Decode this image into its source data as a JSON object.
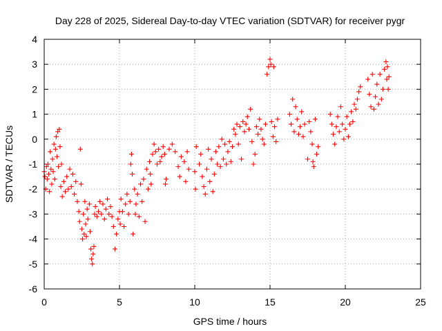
{
  "chart_data": {
    "type": "scatter",
    "title": "Day 228 of 2025, Sidereal Day-to-day VTEC variation (SDTVAR) for receiver pygr",
    "xlabel": "GPS time / hours",
    "ylabel": "SDTVAR / TECUs",
    "xlim": [
      0,
      25
    ],
    "ylim": [
      -6,
      4
    ],
    "x_ticks": [
      "0",
      "5",
      "10",
      "15",
      "20",
      "25"
    ],
    "y_ticks": [
      "4",
      "3",
      "2",
      "1",
      "0",
      "-1",
      "-2",
      "-3",
      "-4",
      "-5",
      "-6"
    ],
    "grid": true,
    "marker": "+",
    "color": "#ff0000",
    "series": [
      {
        "name": "SDTVAR",
        "points": [
          [
            0.0,
            -1.3
          ],
          [
            0.05,
            -1.5
          ],
          [
            0.1,
            -2.0
          ],
          [
            0.15,
            -1.1
          ],
          [
            0.2,
            -1.6
          ],
          [
            0.25,
            -1.0
          ],
          [
            0.3,
            -1.4
          ],
          [
            0.35,
            -2.1
          ],
          [
            0.4,
            -0.5
          ],
          [
            0.45,
            -1.2
          ],
          [
            0.5,
            -1.8
          ],
          [
            0.55,
            -0.8
          ],
          [
            0.6,
            -1.3
          ],
          [
            0.65,
            -0.2
          ],
          [
            0.7,
            -1.6
          ],
          [
            0.75,
            -0.4
          ],
          [
            0.8,
            0.1
          ],
          [
            0.85,
            -0.7
          ],
          [
            0.9,
            0.3
          ],
          [
            0.95,
            -1.1
          ],
          [
            1.0,
            0.4
          ],
          [
            1.05,
            -0.3
          ],
          [
            1.1,
            -1.9
          ],
          [
            1.15,
            -1.0
          ],
          [
            1.2,
            -2.3
          ],
          [
            1.3,
            -1.7
          ],
          [
            1.4,
            -2.1
          ],
          [
            1.5,
            -1.5
          ],
          [
            1.6,
            -2.0
          ],
          [
            1.7,
            -1.2
          ],
          [
            1.8,
            -1.9
          ],
          [
            1.9,
            -1.4
          ],
          [
            2.0,
            -2.2
          ],
          [
            2.1,
            -1.7
          ],
          [
            2.2,
            -2.5
          ],
          [
            2.3,
            -2.9
          ],
          [
            2.35,
            -3.3
          ],
          [
            2.4,
            -0.4
          ],
          [
            2.45,
            -1.8
          ],
          [
            2.5,
            -3.6
          ],
          [
            2.55,
            -4.0
          ],
          [
            2.6,
            -3.0
          ],
          [
            2.65,
            -3.8
          ],
          [
            2.7,
            -2.5
          ],
          [
            2.75,
            -3.4
          ],
          [
            2.8,
            -3.9
          ],
          [
            2.85,
            -2.8
          ],
          [
            2.9,
            -3.2
          ],
          [
            3.0,
            -2.6
          ],
          [
            3.05,
            -3.7
          ],
          [
            3.1,
            -4.4
          ],
          [
            3.15,
            -4.8
          ],
          [
            3.2,
            -5.0
          ],
          [
            3.25,
            -4.6
          ],
          [
            3.3,
            -4.3
          ],
          [
            3.35,
            -3.0
          ],
          [
            3.4,
            -2.7
          ],
          [
            3.5,
            -3.1
          ],
          [
            3.6,
            -2.9
          ],
          [
            3.7,
            -2.5
          ],
          [
            3.8,
            -3.0
          ],
          [
            3.9,
            -2.6
          ],
          [
            4.0,
            -3.2
          ],
          [
            4.1,
            -2.8
          ],
          [
            4.2,
            -2.4
          ],
          [
            4.3,
            -3.0
          ],
          [
            4.4,
            -2.7
          ],
          [
            4.5,
            -3.1
          ],
          [
            4.6,
            -3.5
          ],
          [
            4.7,
            -4.4
          ],
          [
            4.8,
            -3.8
          ],
          [
            4.9,
            -3.2
          ],
          [
            5.0,
            -2.9
          ],
          [
            5.05,
            -3.4
          ],
          [
            5.1,
            -2.4
          ],
          [
            5.2,
            -2.9
          ],
          [
            5.3,
            -3.5
          ],
          [
            5.4,
            -2.6
          ],
          [
            5.5,
            -2.2
          ],
          [
            5.6,
            -3.0
          ],
          [
            5.7,
            -2.5
          ],
          [
            5.75,
            -1.0
          ],
          [
            5.8,
            -0.6
          ],
          [
            5.85,
            -1.4
          ],
          [
            5.9,
            -3.8
          ],
          [
            6.0,
            -2.0
          ],
          [
            6.05,
            -3.0
          ],
          [
            6.1,
            -2.6
          ],
          [
            6.2,
            -2.2
          ],
          [
            6.3,
            -3.1
          ],
          [
            6.4,
            -1.8
          ],
          [
            6.5,
            -2.5
          ],
          [
            6.6,
            -1.6
          ],
          [
            6.7,
            -3.3
          ],
          [
            6.8,
            -1.2
          ],
          [
            6.9,
            -2.0
          ],
          [
            7.0,
            -0.9
          ],
          [
            7.05,
            -1.4
          ],
          [
            7.1,
            -1.8
          ],
          [
            7.2,
            -0.6
          ],
          [
            7.3,
            -0.2
          ],
          [
            7.4,
            -0.5
          ],
          [
            7.5,
            -1.0
          ],
          [
            7.6,
            -0.4
          ],
          [
            7.7,
            -0.9
          ],
          [
            7.8,
            -0.7
          ],
          [
            7.9,
            -0.3
          ],
          [
            8.0,
            -0.6
          ],
          [
            8.05,
            -1.8
          ],
          [
            8.1,
            -1.6
          ],
          [
            8.3,
            -0.4
          ],
          [
            8.5,
            -0.2
          ],
          [
            8.7,
            -0.5
          ],
          [
            8.9,
            -1.1
          ],
          [
            9.0,
            -1.5
          ],
          [
            9.1,
            -0.7
          ],
          [
            9.3,
            -0.9
          ],
          [
            9.4,
            -1.7
          ],
          [
            9.5,
            -0.5
          ],
          [
            9.6,
            -1.2
          ],
          [
            10.0,
            -1.3
          ],
          [
            10.05,
            -2.0
          ],
          [
            10.1,
            -0.3
          ],
          [
            10.3,
            -1.0
          ],
          [
            10.4,
            -0.6
          ],
          [
            10.5,
            -1.5
          ],
          [
            10.6,
            -1.9
          ],
          [
            10.7,
            -2.2
          ],
          [
            10.8,
            -1.2
          ],
          [
            10.9,
            -0.4
          ],
          [
            11.0,
            -1.7
          ],
          [
            11.1,
            -0.8
          ],
          [
            11.2,
            -2.1
          ],
          [
            11.3,
            -1.4
          ],
          [
            11.4,
            -0.5
          ],
          [
            11.5,
            -1.0
          ],
          [
            11.6,
            -0.3
          ],
          [
            11.7,
            -1.1
          ],
          [
            11.8,
            0.0
          ],
          [
            11.9,
            -0.8
          ],
          [
            12.0,
            -0.2
          ],
          [
            12.1,
            -1.0
          ],
          [
            12.2,
            -0.5
          ],
          [
            12.3,
            -0.1
          ],
          [
            12.4,
            -0.9
          ],
          [
            12.5,
            -0.3
          ],
          [
            12.6,
            0.4
          ],
          [
            12.7,
            0.2
          ],
          [
            12.8,
            0.6
          ],
          [
            12.9,
            -0.2
          ],
          [
            13.0,
            0.5
          ],
          [
            13.1,
            -0.8
          ],
          [
            13.2,
            0.7
          ],
          [
            13.3,
            0.3
          ],
          [
            13.4,
            0.6
          ],
          [
            13.5,
            0.9
          ],
          [
            13.6,
            0.4
          ],
          [
            13.7,
            1.2
          ],
          [
            13.8,
            -0.1
          ],
          [
            13.9,
            -1.0
          ],
          [
            14.0,
            -0.6
          ],
          [
            14.1,
            0.5
          ],
          [
            14.2,
            0.2
          ],
          [
            14.3,
            0.8
          ],
          [
            14.4,
            0.4
          ],
          [
            14.5,
            0.0
          ],
          [
            14.6,
            -0.2
          ],
          [
            14.7,
            0.6
          ],
          [
            14.8,
            2.6
          ],
          [
            14.9,
            2.9
          ],
          [
            15.0,
            3.2
          ],
          [
            15.05,
            3.0
          ],
          [
            15.1,
            0.7
          ],
          [
            15.2,
            0.1
          ],
          [
            15.25,
            2.9
          ],
          [
            15.3,
            0.5
          ],
          [
            15.4,
            -0.1
          ],
          [
            15.5,
            0.8
          ],
          [
            16.3,
            1.0
          ],
          [
            16.4,
            0.6
          ],
          [
            16.5,
            1.6
          ],
          [
            16.6,
            0.3
          ],
          [
            16.7,
            1.3
          ],
          [
            16.8,
            0.8
          ],
          [
            16.9,
            0.2
          ],
          [
            17.0,
            0.5
          ],
          [
            17.1,
            1.1
          ],
          [
            17.2,
            0.1
          ],
          [
            17.3,
            0.6
          ],
          [
            17.5,
            -0.8
          ],
          [
            17.6,
            0.7
          ],
          [
            17.7,
            0.3
          ],
          [
            17.8,
            -0.2
          ],
          [
            17.85,
            -0.9
          ],
          [
            17.9,
            -1.1
          ],
          [
            18.0,
            0.8
          ],
          [
            18.1,
            -0.6
          ],
          [
            18.2,
            -0.3
          ],
          [
            19.0,
            1.0
          ],
          [
            19.1,
            0.6
          ],
          [
            19.2,
            0.2
          ],
          [
            19.3,
            -0.2
          ],
          [
            19.4,
            0.5
          ],
          [
            19.5,
            0.9
          ],
          [
            19.6,
            0.3
          ],
          [
            19.7,
            1.3
          ],
          [
            19.8,
            0.6
          ],
          [
            19.9,
            0.0
          ],
          [
            20.0,
            0.4
          ],
          [
            20.1,
            0.9
          ],
          [
            20.2,
            0.1
          ],
          [
            20.3,
            0.6
          ],
          [
            20.4,
            1.1
          ],
          [
            20.5,
            0.7
          ],
          [
            20.6,
            1.4
          ],
          [
            20.7,
            1.2
          ],
          [
            20.8,
            1.6
          ],
          [
            20.9,
            1.9
          ],
          [
            21.0,
            2.1
          ],
          [
            21.5,
            2.4
          ],
          [
            21.6,
            1.8
          ],
          [
            21.7,
            1.3
          ],
          [
            21.8,
            2.6
          ],
          [
            21.9,
            1.2
          ],
          [
            22.0,
            1.7
          ],
          [
            22.1,
            2.2
          ],
          [
            22.2,
            1.4
          ],
          [
            22.3,
            2.6
          ],
          [
            22.4,
            1.6
          ],
          [
            22.5,
            2.0
          ],
          [
            22.6,
            2.8
          ],
          [
            22.7,
            3.1
          ],
          [
            22.75,
            2.4
          ],
          [
            22.8,
            2.9
          ],
          [
            22.85,
            2.0
          ],
          [
            22.9,
            2.5
          ]
        ]
      }
    ]
  }
}
